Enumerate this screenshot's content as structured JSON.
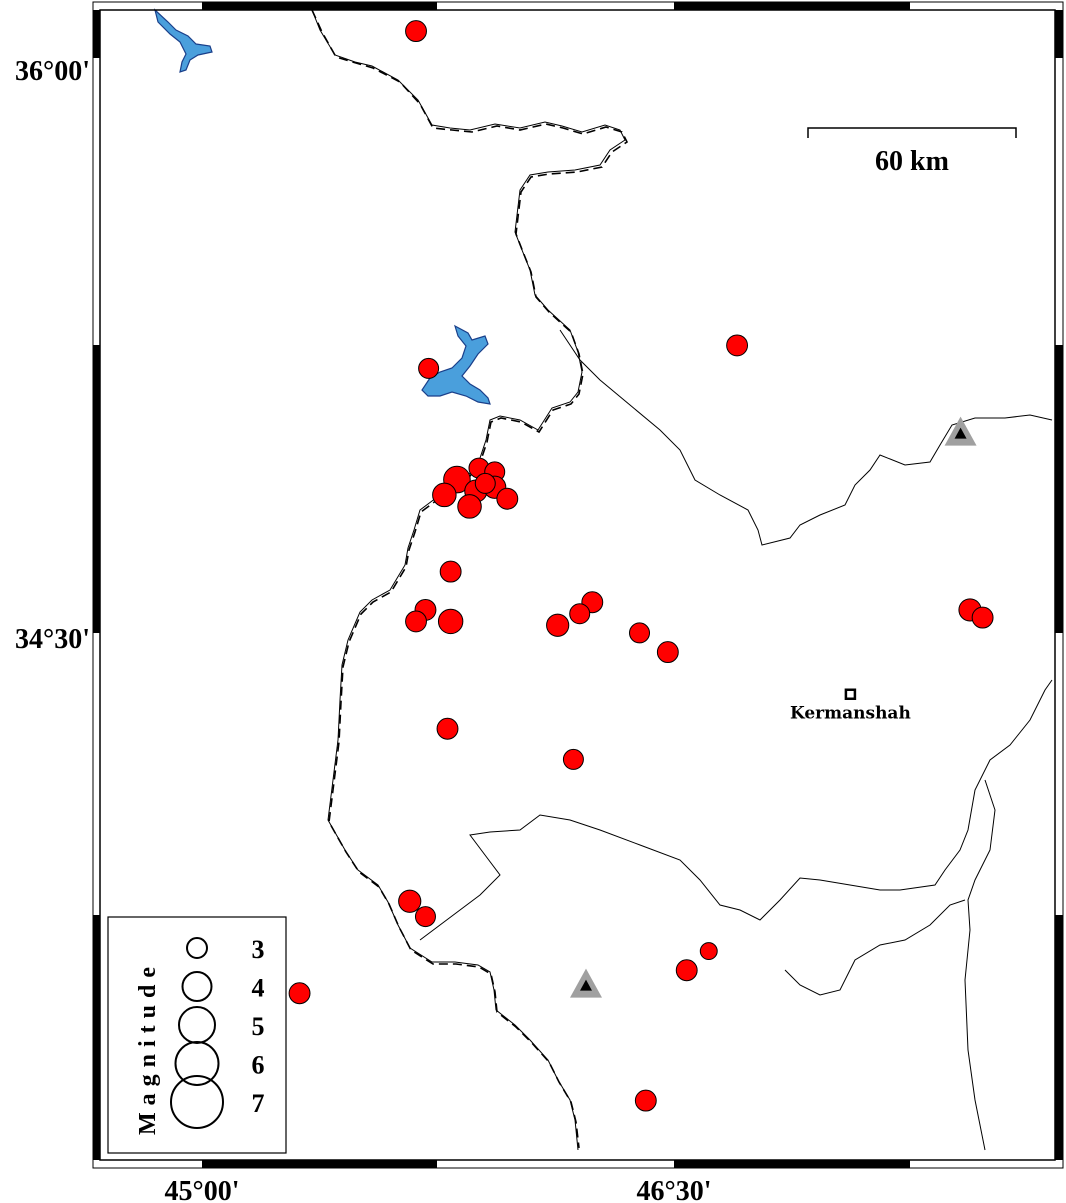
{
  "map": {
    "lon_range": [
      44.676,
      47.71
    ],
    "lat_range": [
      33.125,
      36.125
    ],
    "lon_ticks": [
      {
        "value": 45.0,
        "label": "45°00'"
      },
      {
        "value": 46.5,
        "label": "46°30'"
      }
    ],
    "lat_ticks": [
      {
        "value": 36.0,
        "label": "36°00'"
      },
      {
        "value": 34.5,
        "label": "34°30'"
      }
    ],
    "scale_bar": {
      "label": "60 km"
    },
    "city": {
      "name": "Kermanshah",
      "lon": 47.06,
      "lat": 34.34
    },
    "volcanoes": [
      {
        "lon": 47.41,
        "lat": 35.02
      },
      {
        "lon": 46.22,
        "lat": 33.58
      }
    ],
    "colors": {
      "event": "#ff0000",
      "water": "#4a9fdc",
      "volcano": "#a0a0a0"
    },
    "events": [
      {
        "lon": 45.68,
        "lat": 36.07,
        "mag": 3.2
      },
      {
        "lon": 46.7,
        "lat": 35.25,
        "mag": 3.2
      },
      {
        "lon": 45.72,
        "lat": 35.19,
        "mag": 3.0
      },
      {
        "lon": 45.81,
        "lat": 34.9,
        "mag": 4.5
      },
      {
        "lon": 45.77,
        "lat": 34.86,
        "mag": 3.8
      },
      {
        "lon": 45.88,
        "lat": 34.93,
        "mag": 3.0
      },
      {
        "lon": 45.93,
        "lat": 34.92,
        "mag": 3.0
      },
      {
        "lon": 45.87,
        "lat": 34.87,
        "mag": 3.5
      },
      {
        "lon": 45.85,
        "lat": 34.83,
        "mag": 3.8
      },
      {
        "lon": 45.93,
        "lat": 34.88,
        "mag": 3.5
      },
      {
        "lon": 45.97,
        "lat": 34.85,
        "mag": 3.2
      },
      {
        "lon": 45.9,
        "lat": 34.89,
        "mag": 3.0
      },
      {
        "lon": 45.79,
        "lat": 34.66,
        "mag": 3.2
      },
      {
        "lon": 45.71,
        "lat": 34.56,
        "mag": 3.2
      },
      {
        "lon": 45.68,
        "lat": 34.53,
        "mag": 3.2
      },
      {
        "lon": 45.79,
        "lat": 34.53,
        "mag": 4.0
      },
      {
        "lon": 46.24,
        "lat": 34.58,
        "mag": 3.2
      },
      {
        "lon": 46.2,
        "lat": 34.55,
        "mag": 3.0
      },
      {
        "lon": 46.13,
        "lat": 34.52,
        "mag": 3.5
      },
      {
        "lon": 46.39,
        "lat": 34.5,
        "mag": 3.0
      },
      {
        "lon": 46.48,
        "lat": 34.45,
        "mag": 3.2
      },
      {
        "lon": 45.78,
        "lat": 34.25,
        "mag": 3.2
      },
      {
        "lon": 46.18,
        "lat": 34.17,
        "mag": 3.0
      },
      {
        "lon": 47.44,
        "lat": 34.56,
        "mag": 3.5
      },
      {
        "lon": 47.48,
        "lat": 34.54,
        "mag": 3.2
      },
      {
        "lon": 45.66,
        "lat": 33.8,
        "mag": 3.5
      },
      {
        "lon": 45.71,
        "lat": 33.76,
        "mag": 3.0
      },
      {
        "lon": 45.31,
        "lat": 33.56,
        "mag": 3.2
      },
      {
        "lon": 46.54,
        "lat": 33.62,
        "mag": 3.2
      },
      {
        "lon": 46.61,
        "lat": 33.67,
        "mag": 2.3
      },
      {
        "lon": 46.41,
        "lat": 33.28,
        "mag": 3.2
      }
    ]
  },
  "legend": {
    "title": "Magnitude",
    "items": [
      {
        "mag": 3,
        "label": "3"
      },
      {
        "mag": 4,
        "label": "4"
      },
      {
        "mag": 5,
        "label": "5"
      },
      {
        "mag": 6,
        "label": "6"
      },
      {
        "mag": 7,
        "label": "7"
      }
    ]
  }
}
